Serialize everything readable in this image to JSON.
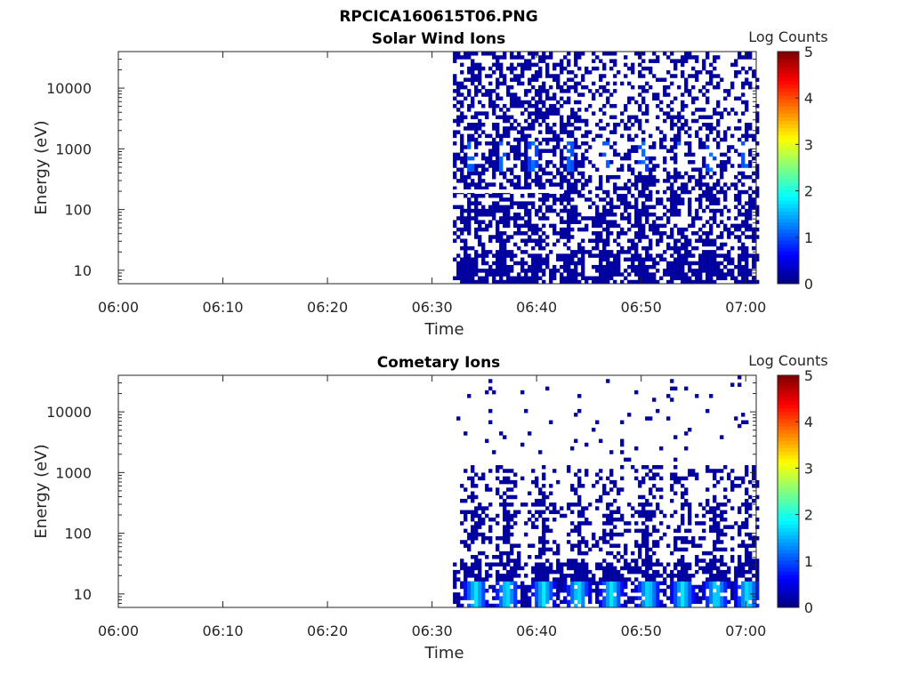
{
  "figure": {
    "title": "RPCICA160615T06.PNG"
  },
  "chart_data": [
    {
      "type": "heatmap",
      "title": "Solar Wind Ions",
      "xlabel": "Time",
      "ylabel": "Energy (eV)",
      "x_ticks": [
        "06:00",
        "06:10",
        "06:20",
        "06:30",
        "06:40",
        "06:50",
        "07:00"
      ],
      "y_ticks": [
        "10",
        "100",
        "1000",
        "10000"
      ],
      "y_scale": "log",
      "y_range_eV": [
        6,
        40000
      ],
      "x_range": [
        "06:00",
        "07:01"
      ],
      "data_start": "06:32",
      "colorbar": {
        "label": "Log Counts",
        "range": [
          0,
          5
        ],
        "ticks": [
          "0",
          "1",
          "2",
          "3",
          "4",
          "5"
        ],
        "colormap": "jet"
      },
      "bursts_minutes": [
        33.5,
        36.5,
        39.5,
        43.0,
        46.5,
        50.0,
        53.5,
        56.5,
        59.8
      ],
      "gap_energy_eV": 200,
      "peak_log_counts": 1.2
    },
    {
      "type": "heatmap",
      "title": "Cometary Ions",
      "xlabel": "Time",
      "ylabel": "Energy (eV)",
      "x_ticks": [
        "06:00",
        "06:10",
        "06:20",
        "06:30",
        "06:40",
        "06:50",
        "07:00"
      ],
      "y_ticks": [
        "10",
        "100",
        "1000",
        "10000"
      ],
      "y_scale": "log",
      "y_range_eV": [
        6,
        40000
      ],
      "x_range": [
        "06:00",
        "07:01"
      ],
      "data_start": "06:32",
      "colorbar": {
        "label": "Log Counts",
        "range": [
          0,
          5
        ],
        "ticks": [
          "0",
          "1",
          "2",
          "3",
          "4",
          "5"
        ],
        "colormap": "jet"
      },
      "bursts_minutes": [
        34.0,
        37.0,
        40.5,
        43.8,
        47.0,
        50.5,
        53.8,
        57.0,
        60.0
      ],
      "peak_log_counts": 1.8
    }
  ]
}
